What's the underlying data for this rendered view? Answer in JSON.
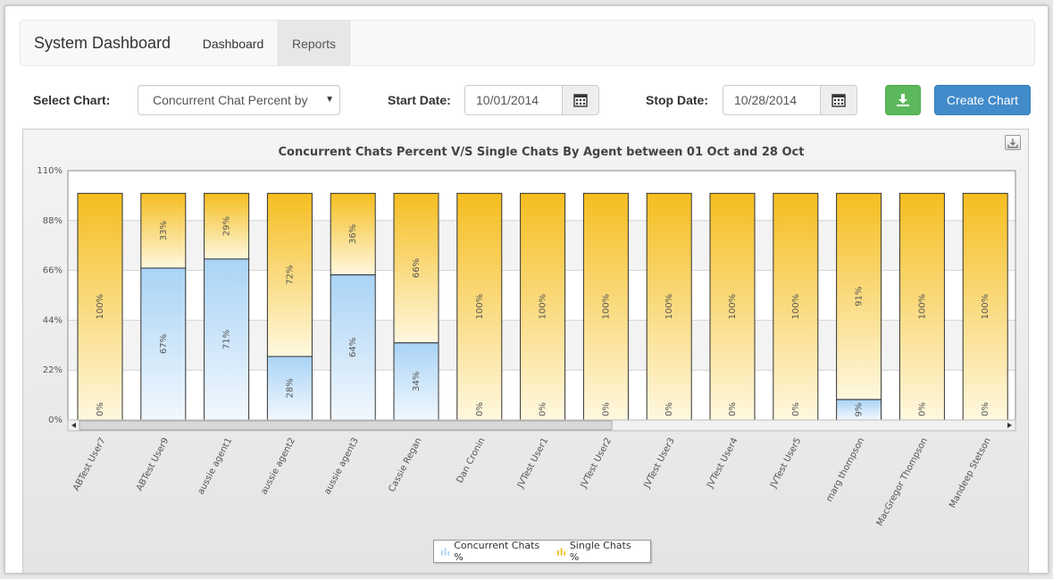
{
  "navbar": {
    "brand": "System Dashboard",
    "tabs": [
      {
        "label": "Dashboard",
        "active": false
      },
      {
        "label": "Reports",
        "active": true
      }
    ]
  },
  "toolbar": {
    "select_chart_label": "Select Chart:",
    "select_chart_value": "Concurrent Chat Percent by",
    "start_date_label": "Start Date:",
    "start_date_value": "10/01/2014",
    "stop_date_label": "Stop Date:",
    "stop_date_value": "10/28/2014",
    "download_icon": "download-icon",
    "create_chart_label": "Create Chart"
  },
  "colors": {
    "concurrent": "#a9d3f5",
    "single": "#f5bd1f",
    "create_button": "#428bca",
    "download_button": "#5cb85c"
  },
  "chart_data": {
    "type": "bar",
    "stacked": true,
    "title": "Concurrent Chats Percent V/S Single Chats By Agent between 01 Oct and 28 Oct",
    "ylim": [
      0,
      110
    ],
    "yticks": [
      "0%",
      "22%",
      "44%",
      "66%",
      "88%",
      "110%"
    ],
    "grid": true,
    "legend_position": "bottom-center",
    "categories": [
      "ABTest User7",
      "ABTest User9",
      "aussie agent1",
      "aussie agent2",
      "aussie agent3",
      "Cassie Regan",
      "Dan Cronin",
      "JVTest User1",
      "JVTest User2",
      "JVTest User3",
      "JVTest User4",
      "JVTest User5",
      "marg thompson",
      "MacGregor Thompson",
      "Mandeep Stetson"
    ],
    "series": [
      {
        "name": "Concurrent Chats %",
        "values": [
          0,
          67,
          71,
          28,
          64,
          34,
          0,
          0,
          0,
          0,
          0,
          0,
          9,
          0,
          0
        ]
      },
      {
        "name": "Single Chats %",
        "values": [
          100,
          33,
          29,
          72,
          36,
          66,
          100,
          100,
          100,
          100,
          100,
          100,
          91,
          100,
          100
        ]
      }
    ],
    "concurrent_labels": [
      "0%",
      "67%",
      "71%",
      "28%",
      "64%",
      "34%",
      "0%",
      "0%",
      "0%",
      "0%",
      "0%",
      "0%",
      "9%",
      "0%",
      "0%"
    ],
    "single_labels": [
      "100%",
      "33%",
      "29%",
      "72%",
      "36%",
      "66%",
      "100%",
      "100%",
      "100%",
      "100%",
      "100%",
      "100%",
      "91%",
      "100%",
      "100%"
    ]
  },
  "legend": {
    "concurrent": "Concurrent Chats %",
    "single": "Single Chats %"
  }
}
